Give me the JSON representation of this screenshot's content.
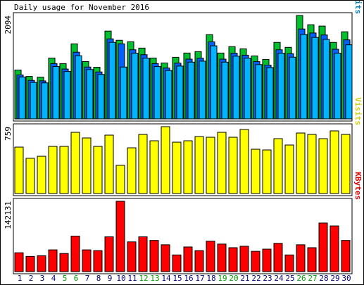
{
  "title": "Daily usage for November 2016",
  "days": [
    "1",
    "2",
    "3",
    "4",
    "5",
    "6",
    "7",
    "8",
    "9",
    "10",
    "11",
    "12",
    "13",
    "14",
    "15",
    "16",
    "17",
    "18",
    "19",
    "20",
    "21",
    "22",
    "23",
    "24",
    "25",
    "26",
    "27",
    "28",
    "29",
    "30"
  ],
  "day_color": "#000080",
  "highlight_color": "#00a000",
  "highlight_indices": [
    4,
    5,
    11,
    12,
    18,
    19,
    25,
    26
  ],
  "chart_data": [
    {
      "type": "bar",
      "legend": "Pages/Files/Hits",
      "legend_color": "#0080c0",
      "ylim": [
        0,
        2094
      ],
      "yticks": [
        2094
      ],
      "series": [
        {
          "color": "#00c030",
          "values": [
            990,
            860,
            846,
            1233,
            1119,
            1520,
            1162,
            1047,
            1778,
            1592,
            1563,
            1434,
            1233,
            1133,
            1248,
            1334,
            1363,
            1707,
            1334,
            1463,
            1420,
            1276,
            1205,
            1549,
            1449,
            2094,
            1907,
            1879,
            1549,
            1764
          ]
        },
        {
          "color": "#0060ff",
          "values": [
            890,
            780,
            770,
            1120,
            1010,
            1350,
            1050,
            950,
            1620,
            1520,
            1400,
            1300,
            1120,
            1030,
            1130,
            1210,
            1230,
            1560,
            1210,
            1330,
            1290,
            1160,
            1090,
            1400,
            1320,
            1820,
            1740,
            1700,
            1410,
            1600
          ]
        },
        {
          "color": "#00b4ff",
          "values": [
            850,
            740,
            730,
            1060,
            960,
            1280,
            1000,
            900,
            1550,
            1050,
            1330,
            1230,
            1060,
            980,
            1070,
            1150,
            1170,
            1480,
            1150,
            1270,
            1230,
            1100,
            1040,
            1330,
            1250,
            1710,
            1650,
            1610,
            1330,
            1500
          ]
        }
      ]
    },
    {
      "type": "bar",
      "legend": "Visits",
      "legend_color": "#d0d000",
      "ylim": [
        0,
        759
      ],
      "yticks": [
        759
      ],
      "series": [
        {
          "color": "#ffff00",
          "values": [
            527,
            400,
            423,
            535,
            535,
            695,
            631,
            535,
            663,
            320,
            519,
            671,
            599,
            759,
            583,
            599,
            647,
            639,
            695,
            639,
            727,
            503,
            495,
            623,
            551,
            687,
            671,
            623,
            711,
            671
          ]
        }
      ]
    },
    {
      "type": "bar",
      "legend": "KBytes",
      "legend_color": "#e00000",
      "ylim": [
        0,
        142131
      ],
      "yticks": [
        142131
      ],
      "series": [
        {
          "color": "#ff0000",
          "values": [
            38097,
            30771,
            32236,
            43958,
            36631,
            71800,
            43958,
            42493,
            70335,
            142131,
            60077,
            70335,
            63000,
            54215,
            33700,
            49820,
            42493,
            61541,
            55680,
            48354,
            51285,
            41028,
            45423,
            57145,
            33700,
            54215,
            48354,
            98170,
            92309,
            63000
          ]
        }
      ]
    }
  ]
}
